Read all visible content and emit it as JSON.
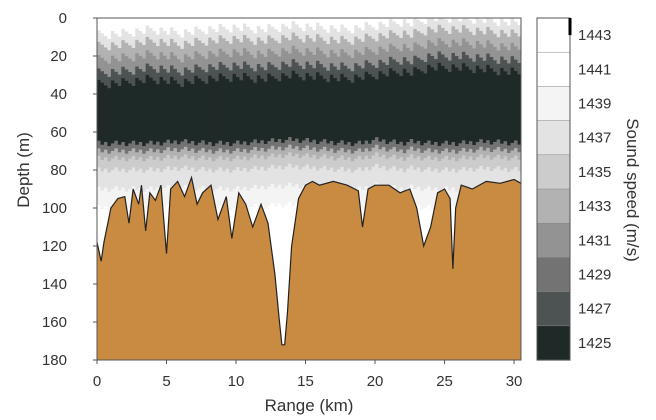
{
  "chart_data": {
    "type": "heatmap",
    "title": "",
    "xlabel": "Range (km)",
    "ylabel": "Depth (m)",
    "colorbar_label": "Sound speed (m/s)",
    "xlim": [
      0,
      30.5
    ],
    "ylim": [
      180,
      0
    ],
    "x_ticks": [
      0,
      5,
      10,
      15,
      20,
      25,
      30
    ],
    "y_ticks": [
      0,
      20,
      40,
      60,
      80,
      100,
      120,
      140,
      160,
      180
    ],
    "colorbar_ticks": [
      1443,
      1441,
      1439,
      1437,
      1435,
      1433,
      1431,
      1429,
      1427,
      1425
    ],
    "colorbar_levels": [
      {
        "label": "1443",
        "color": "#ffffff"
      },
      {
        "label": "1441",
        "color": "#ffffff"
      },
      {
        "label": "1439",
        "color": "#f4f4f4"
      },
      {
        "label": "1437",
        "color": "#e3e3e3"
      },
      {
        "label": "1435",
        "color": "#cccccc"
      },
      {
        "label": "1433",
        "color": "#b2b2b2"
      },
      {
        "label": "1431",
        "color": "#939393"
      },
      {
        "label": "1429",
        "color": "#737373"
      },
      {
        "label": "1427",
        "color": "#4d5353"
      },
      {
        "label": "1425",
        "color": "#1f2a28"
      }
    ],
    "seafloor_color": "#c98a41",
    "seafloor_depth_m": {
      "range_km": [
        0,
        0.3,
        0.5,
        1.0,
        1.5,
        2.0,
        2.3,
        2.6,
        3.0,
        3.2,
        3.5,
        3.8,
        4.2,
        4.6,
        5.0,
        5.3,
        5.8,
        6.3,
        6.8,
        7.2,
        7.6,
        8.2,
        8.7,
        9.3,
        9.7,
        10.2,
        10.7,
        11.2,
        11.8,
        12.3,
        12.8,
        13.1,
        13.3,
        13.5,
        13.7,
        14.0,
        14.5,
        15.0,
        15.5,
        16.0,
        17.0,
        18.0,
        18.8,
        19.1,
        19.5,
        20.0,
        21.0,
        21.8,
        22.5,
        23.0,
        23.5,
        24.0,
        24.5,
        25.0,
        25.4,
        25.6,
        25.8,
        26.2,
        27.0,
        28.0,
        29.0,
        30.0,
        30.5
      ],
      "depth_m": [
        118,
        128,
        118,
        100,
        95,
        94,
        108,
        90,
        98,
        88,
        112,
        92,
        96,
        88,
        124,
        90,
        86,
        94,
        84,
        98,
        92,
        88,
        106,
        94,
        116,
        92,
        98,
        110,
        98,
        108,
        135,
        158,
        172,
        172,
        155,
        120,
        95,
        88,
        86,
        88,
        86,
        88,
        91,
        110,
        90,
        88,
        88,
        92,
        90,
        100,
        120,
        110,
        92,
        90,
        95,
        132,
        100,
        88,
        90,
        86,
        87,
        85,
        87
      ]
    },
    "water_column": {
      "range_km": [
        0,
        2,
        4,
        6,
        8,
        10,
        12,
        14,
        16,
        18,
        19,
        20,
        22,
        22.5,
        24,
        26,
        28,
        30.5
      ],
      "top_dark_boundary_depth_m": [
        35,
        34,
        32,
        34,
        32,
        31,
        32,
        30,
        31,
        32,
        31,
        30,
        28,
        29,
        26,
        26,
        27,
        29
      ],
      "bottom_dark_boundary_depth_m": [
        66,
        66,
        66,
        65,
        66,
        66,
        65,
        64,
        65,
        66,
        66,
        64,
        66,
        65,
        66,
        66,
        65,
        66
      ]
    },
    "grid": false,
    "legend": "colorbar-right"
  }
}
